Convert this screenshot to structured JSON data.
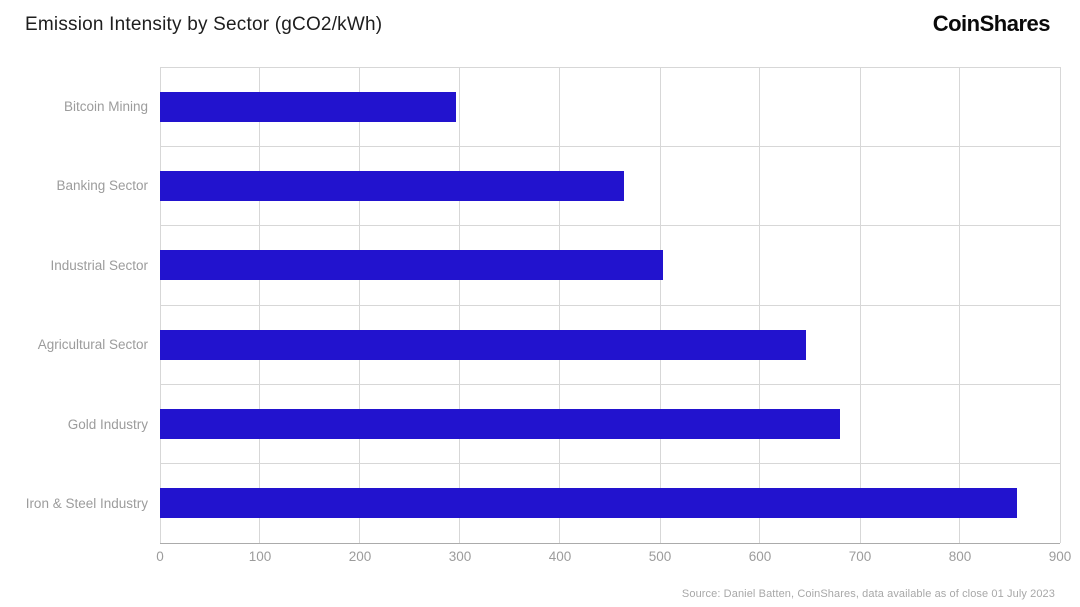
{
  "header": {
    "title": "Emission Intensity by Sector (gCO2/kWh)",
    "logo_text": "CoinShares"
  },
  "chart_data": {
    "type": "bar",
    "orientation": "horizontal",
    "title": "Emission Intensity by Sector (gCO2/kWh)",
    "categories": [
      "Bitcoin Mining",
      "Banking Sector",
      "Industrial Sector",
      "Agricultural Sector",
      "Gold Industry",
      "Iron & Steel Industry"
    ],
    "values": [
      296,
      464,
      503,
      646,
      680,
      857
    ],
    "xlabel": "",
    "ylabel": "",
    "xlim": [
      0,
      900
    ],
    "x_ticks": [
      0,
      100,
      200,
      300,
      400,
      500,
      600,
      700,
      800,
      900
    ],
    "grid": true,
    "legend": false,
    "bar_color": "#2213CE"
  },
  "footer": {
    "source": "Source: Daniel Batten, CoinShares, data available as of close 01 July 2023"
  },
  "colors": {
    "bar": "#2213CE",
    "gridline": "#d7d7d7",
    "axis_line": "#ababab",
    "label_text": "#9c9c9c",
    "title_text": "#1e1e1e",
    "source_text": "#a8a8a8",
    "background": "#ffffff"
  }
}
